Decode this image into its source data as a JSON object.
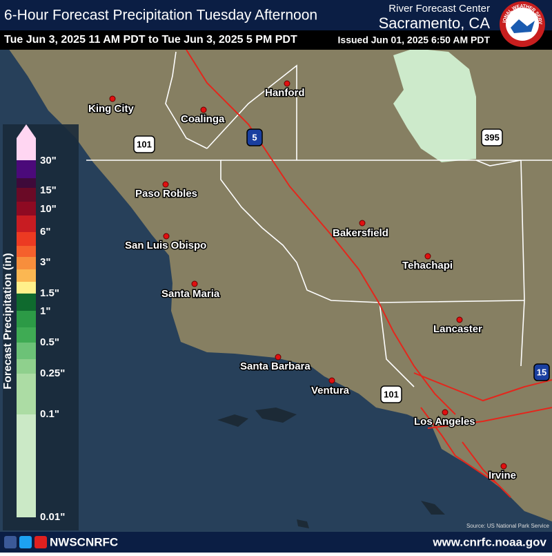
{
  "header": {
    "title": "6-Hour Forecast Precipitation Tuesday Afternoon",
    "period": "Tue Jun 3, 2025 11 AM PDT to Tue Jun 3, 2025 5 PM PDT",
    "center": "River Forecast Center",
    "location": "Sacramento, CA",
    "issued": "Issued Jun 01, 2025 6:50 AM PDT",
    "logo_text": "NATIONAL WEATHER SERVICE"
  },
  "legend": {
    "title": "Forecast Precipitation (in)",
    "labels": [
      "30\"",
      "15\"",
      "10\"",
      "6\"",
      "3\"",
      "1.5\"",
      "1\"",
      "0.5\"",
      "0.25\"",
      "0.1\"",
      "0.01\""
    ],
    "colors": [
      "#ffd6f2",
      "#4b0a7a",
      "#3e0a3a",
      "#6a0a26",
      "#8e0a22",
      "#c81c22",
      "#ec3a22",
      "#f5602c",
      "#f78e3c",
      "#fbb752",
      "#fff08a",
      "#0f6a2e",
      "#2c9a46",
      "#3fab54",
      "#6cc277",
      "#8fd08d",
      "#acdca4",
      "#cbe9c6"
    ]
  },
  "map": {
    "cities": [
      "King City",
      "Coalinga",
      "Hanford",
      "Paso Robles",
      "San Luis Obispo",
      "Santa Maria",
      "Bakersfield",
      "Tehachapi",
      "Lancaster",
      "Santa Barbara",
      "Ventura",
      "Los Angeles",
      "Irvine"
    ],
    "highways": [
      "5",
      "101",
      "395",
      "101",
      "15"
    ],
    "source": "Source: US National Park Service"
  },
  "footer": {
    "handle": "NWSCNRFC",
    "url": "www.cnrfc.noaa.gov"
  }
}
